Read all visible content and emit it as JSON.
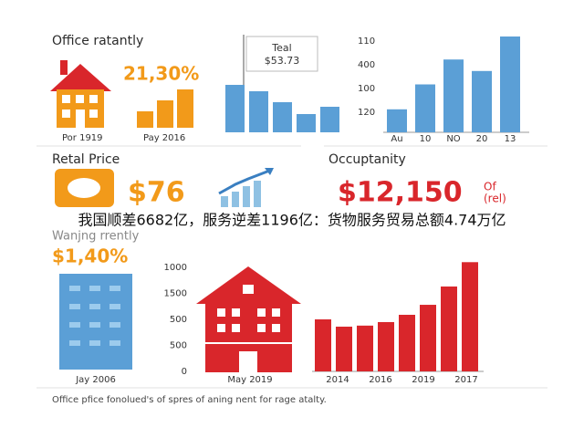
{
  "office": {
    "title": "Office ratantly",
    "headline": "21,30%",
    "labels": [
      "Por 1919",
      "Pay 2016"
    ],
    "bars": [
      18,
      30,
      42
    ]
  },
  "trend": {
    "tooltip_name": "Teal",
    "tooltip_value": "$53.73",
    "bars": [
      52,
      45,
      33,
      20,
      28
    ],
    "ylim": [
      0,
      60
    ]
  },
  "right_chart": {
    "ticks": [
      "110",
      "400",
      "100",
      "120"
    ],
    "categories": [
      "Au",
      "10",
      "NO",
      "20",
      "13"
    ],
    "values": [
      24,
      50,
      76,
      64,
      100
    ],
    "ylim": [
      0,
      100
    ]
  },
  "retail": {
    "title": "Retal Price",
    "value": "$76"
  },
  "occupancy": {
    "title": "Occuptanity",
    "value": "$12,150",
    "note": "Of",
    "note2": "(rel)"
  },
  "banner": "我国顺差6682亿，服务逆差1196亿：货物服务贸易总额4.74万亿",
  "bottom": {
    "subtitle": "Wanjng rrently",
    "headline": "$1,40%",
    "left_label": "Jay 2006",
    "mid_label": "May 2019",
    "ticks": [
      "1000",
      "1500",
      "500",
      "500",
      "0"
    ],
    "categories": [
      "2014",
      "2016",
      "2019",
      "2017"
    ],
    "values": [
      500,
      430,
      440,
      474,
      544,
      640,
      816,
      1050
    ],
    "ylim": [
      0,
      1000
    ]
  },
  "footer": "Office pfice fonolued's of spres of aning nent for rage atalty."
}
